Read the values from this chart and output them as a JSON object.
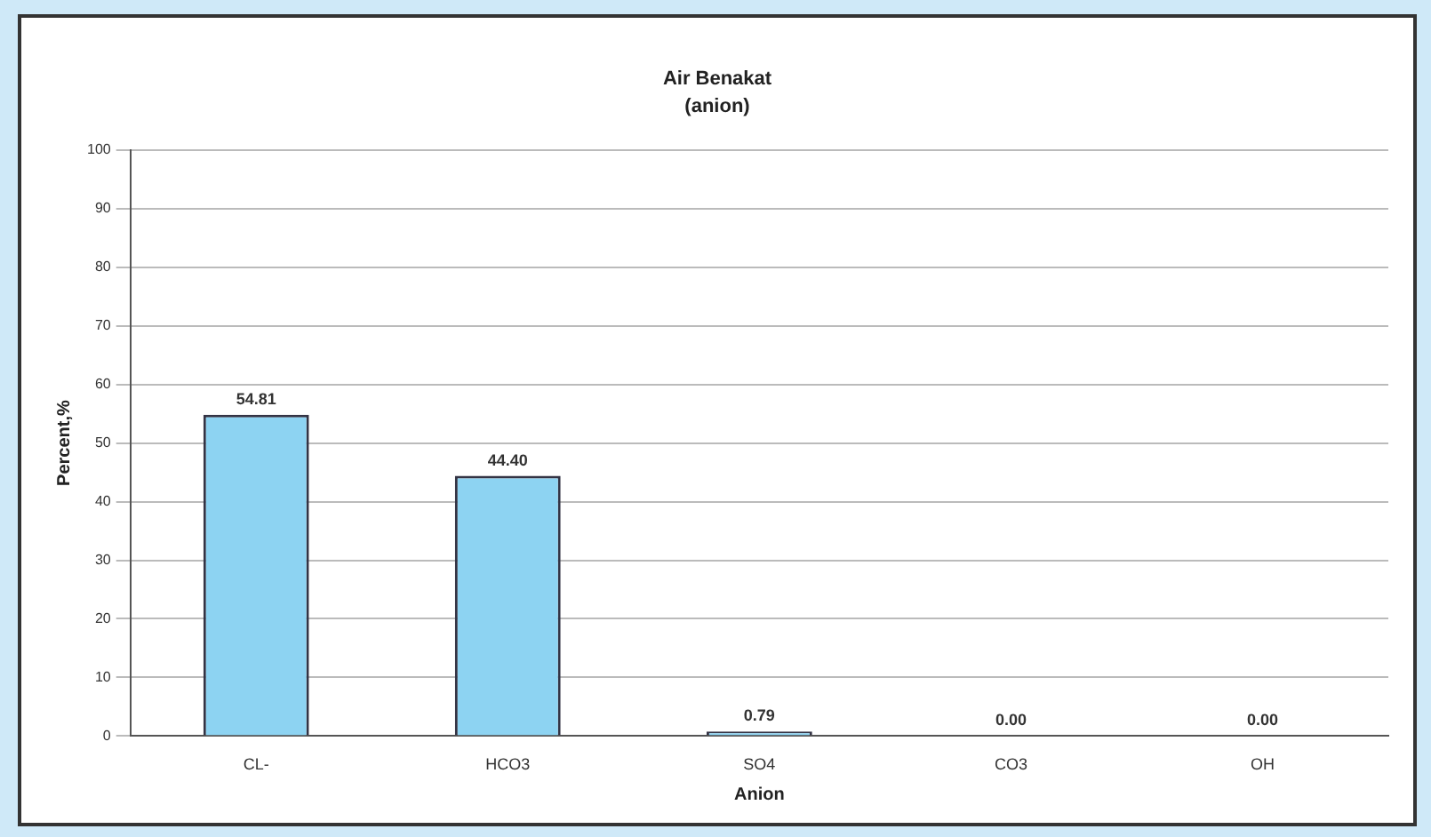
{
  "chart_data": {
    "type": "bar",
    "title": "Air Benakat",
    "subtitle": "(anion)",
    "xlabel": "Anion",
    "ylabel": "Percent,%",
    "categories": [
      "CL-",
      "HCO3",
      "SO4",
      "CO3",
      "OH"
    ],
    "values": [
      54.81,
      44.4,
      0.79,
      0,
      0
    ],
    "value_labels": [
      "54.81",
      "44.40",
      "0.79",
      "0.00",
      "0.00"
    ],
    "color": "#8dd3f2",
    "ylim": [
      0,
      100
    ],
    "yticks": [
      0,
      10,
      20,
      30,
      40,
      50,
      60,
      70,
      80,
      90,
      100
    ],
    "grid": "y",
    "legend": false
  }
}
